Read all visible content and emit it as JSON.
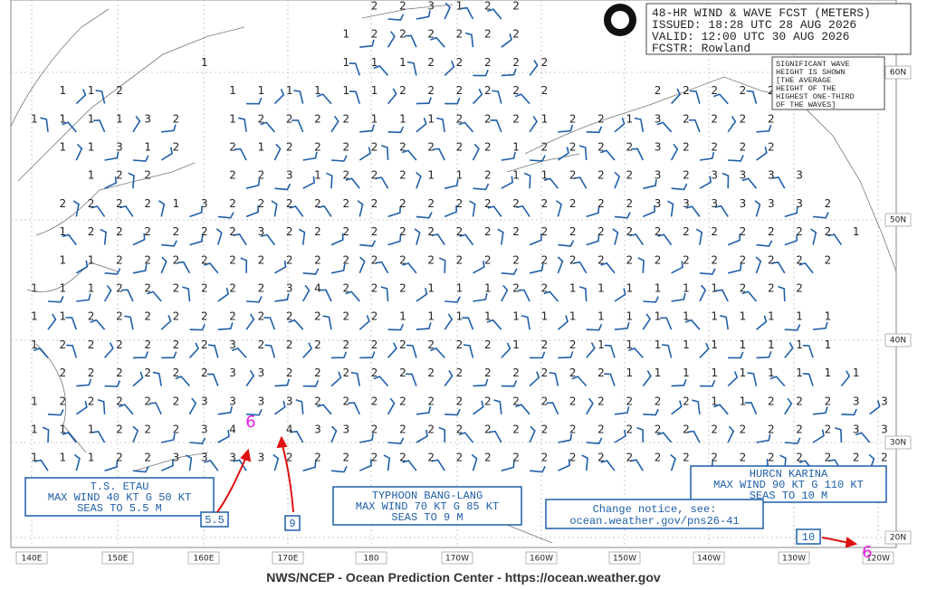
{
  "header": {
    "lines": [
      "48-HR WIND & WAVE FCST (METERS)",
      "ISSUED: 18:28 UTC 28 AUG 2026",
      "VALID:  12:00 UTC 30 AUG 2026",
      "FCSTR:  Rowland"
    ]
  },
  "note": {
    "lines": [
      "SIGNIFICANT WAVE",
      "HEIGHT IS SHOWN",
      "[THE AVERAGE",
      "HEIGHT OF THE",
      "HIGHEST ONE-THIRD",
      "OF THE WAVES]"
    ]
  },
  "storms": [
    {
      "lines": [
        "T.S. ETAU",
        "MAX WIND 40 KT G 50 KT",
        "SEAS TO 5.5 M"
      ],
      "marker": "5.5",
      "symbol": "6"
    },
    {
      "lines": [
        "TYPHOON BANG-LANG",
        "MAX WIND 70 KT G 85 KT",
        "SEAS TO 9 M"
      ],
      "marker": "9"
    },
    {
      "lines": [
        "HURCN KARINA",
        "MAX WIND 90 KT G 110 KT",
        "SEAS TO 10 M"
      ],
      "marker": "10",
      "symbol": "6"
    }
  ],
  "change_notice": {
    "lines": [
      "Change notice, see:",
      "ocean.weather.gov/pns26-41"
    ]
  },
  "longitudes": [
    "140E",
    "150E",
    "160E",
    "170E",
    "180",
    "170W",
    "160W",
    "150W",
    "140W",
    "130W",
    "120W"
  ],
  "latitudes": [
    "60N",
    "50N",
    "40N",
    "30N",
    "20N"
  ],
  "footer": "NWS/NCEP - Ocean Prediction Center - https://ocean.weather.gov",
  "wave_heights": [
    [
      null,
      null,
      null,
      null,
      null,
      null,
      null,
      null,
      null,
      null,
      null,
      null,
      2,
      2,
      3,
      1,
      2,
      2,
      null,
      null,
      null,
      null,
      null,
      null,
      null,
      null,
      null,
      null,
      null,
      null,
      null
    ],
    [
      null,
      null,
      null,
      null,
      null,
      null,
      null,
      null,
      null,
      null,
      null,
      1,
      2,
      2,
      2,
      2,
      2,
      2,
      null,
      null,
      null,
      null,
      null,
      null,
      null,
      null,
      null,
      null,
      null,
      null,
      null
    ],
    [
      null,
      null,
      null,
      null,
      null,
      null,
      1,
      null,
      null,
      null,
      null,
      1,
      1,
      1,
      2,
      2,
      2,
      2,
      2,
      null,
      null,
      null,
      null,
      null,
      null,
      null,
      null,
      null,
      null,
      null,
      null
    ],
    [
      null,
      1,
      1,
      2,
      null,
      null,
      null,
      1,
      1,
      1,
      1,
      1,
      1,
      2,
      2,
      2,
      2,
      2,
      2,
      null,
      null,
      null,
      2,
      2,
      2,
      2,
      2,
      null,
      null,
      null,
      null
    ],
    [
      1,
      1,
      1,
      1,
      3,
      2,
      null,
      1,
      2,
      2,
      2,
      2,
      1,
      1,
      1,
      2,
      2,
      2,
      1,
      2,
      2,
      1,
      3,
      2,
      2,
      2,
      2,
      null,
      null,
      null,
      null
    ],
    [
      null,
      1,
      1,
      3,
      1,
      2,
      null,
      2,
      1,
      2,
      2,
      2,
      2,
      2,
      2,
      2,
      2,
      1,
      2,
      2,
      2,
      2,
      3,
      2,
      2,
      2,
      2,
      null,
      null,
      null,
      null
    ],
    [
      null,
      null,
      1,
      2,
      2,
      null,
      null,
      2,
      2,
      3,
      1,
      2,
      2,
      2,
      1,
      1,
      2,
      1,
      1,
      2,
      2,
      2,
      3,
      2,
      3,
      3,
      3,
      3,
      null,
      null,
      null
    ],
    [
      null,
      2,
      2,
      2,
      2,
      1,
      3,
      2,
      2,
      2,
      2,
      2,
      2,
      2,
      2,
      2,
      2,
      2,
      2,
      2,
      2,
      2,
      3,
      3,
      3,
      3,
      3,
      3,
      2,
      null,
      null
    ],
    [
      null,
      1,
      2,
      2,
      2,
      2,
      2,
      2,
      3,
      2,
      2,
      2,
      2,
      2,
      2,
      2,
      2,
      2,
      2,
      2,
      2,
      2,
      2,
      2,
      2,
      2,
      2,
      2,
      2,
      1,
      null
    ],
    [
      null,
      1,
      1,
      2,
      2,
      2,
      2,
      2,
      2,
      2,
      2,
      2,
      2,
      2,
      2,
      2,
      2,
      2,
      2,
      2,
      2,
      2,
      2,
      2,
      2,
      2,
      2,
      2,
      2,
      null,
      null
    ],
    [
      1,
      1,
      1,
      2,
      2,
      2,
      2,
      2,
      2,
      3,
      4,
      2,
      2,
      2,
      1,
      1,
      1,
      2,
      2,
      1,
      1,
      1,
      1,
      1,
      1,
      2,
      2,
      2,
      null,
      null,
      null
    ],
    [
      1,
      1,
      2,
      2,
      2,
      2,
      2,
      2,
      2,
      2,
      2,
      2,
      2,
      1,
      1,
      1,
      1,
      1,
      1,
      1,
      1,
      1,
      1,
      1,
      1,
      1,
      1,
      1,
      1,
      null,
      null
    ],
    [
      1,
      2,
      2,
      2,
      2,
      2,
      2,
      3,
      2,
      2,
      2,
      2,
      2,
      2,
      2,
      2,
      2,
      1,
      2,
      2,
      1,
      1,
      1,
      1,
      1,
      1,
      1,
      1,
      1,
      null,
      null
    ],
    [
      null,
      2,
      2,
      2,
      2,
      2,
      2,
      3,
      3,
      2,
      2,
      2,
      2,
      2,
      2,
      2,
      2,
      2,
      2,
      2,
      2,
      1,
      1,
      1,
      1,
      1,
      1,
      1,
      1,
      1,
      null
    ],
    [
      1,
      2,
      2,
      2,
      2,
      2,
      3,
      3,
      3,
      3,
      2,
      2,
      2,
      2,
      2,
      2,
      2,
      2,
      2,
      2,
      2,
      2,
      2,
      2,
      1,
      1,
      2,
      2,
      2,
      3,
      3
    ],
    [
      1,
      1,
      1,
      2,
      2,
      2,
      3,
      4,
      null,
      4,
      3,
      3,
      2,
      2,
      2,
      2,
      2,
      2,
      2,
      2,
      2,
      2,
      2,
      2,
      2,
      2,
      2,
      2,
      2,
      3,
      3
    ],
    [
      1,
      1,
      1,
      2,
      2,
      3,
      3,
      3,
      3,
      2,
      2,
      2,
      2,
      2,
      2,
      2,
      2,
      2,
      2,
      2,
      2,
      2,
      2,
      2,
      2,
      2,
      2,
      2,
      2,
      2,
      2
    ]
  ]
}
